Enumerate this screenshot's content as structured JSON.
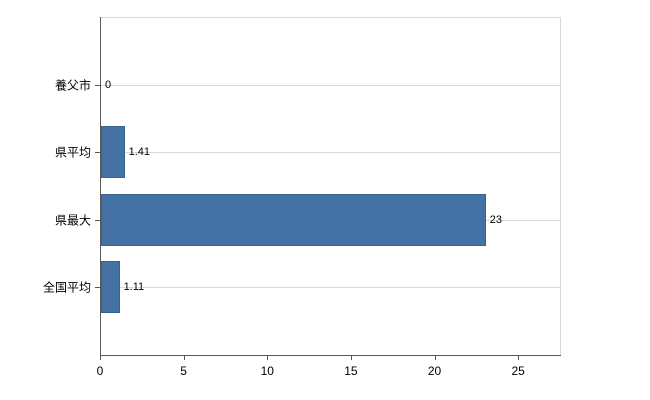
{
  "chart_data": {
    "type": "bar",
    "orientation": "horizontal",
    "title": "",
    "xlabel": "",
    "ylabel": "",
    "categories": [
      "養父市",
      "県平均",
      "県最大",
      "全国平均"
    ],
    "values": [
      0,
      1.41,
      23,
      1.11
    ],
    "value_labels": [
      "0",
      "1.41",
      "23",
      "1.11"
    ],
    "xlim": [
      0,
      27.5
    ],
    "xticks": [
      0,
      5,
      10,
      15,
      20,
      25
    ],
    "xtick_labels": [
      "0",
      "5",
      "10",
      "15",
      "20",
      "25"
    ],
    "grid": "horizontal",
    "legend": "none",
    "colors": {
      "bar_fill": "#4472a4",
      "bar_border": "#38618d",
      "gridline": "#d9d9d9",
      "axis": "#595959",
      "tick_label": "#000000",
      "background": "#ffffff"
    }
  }
}
